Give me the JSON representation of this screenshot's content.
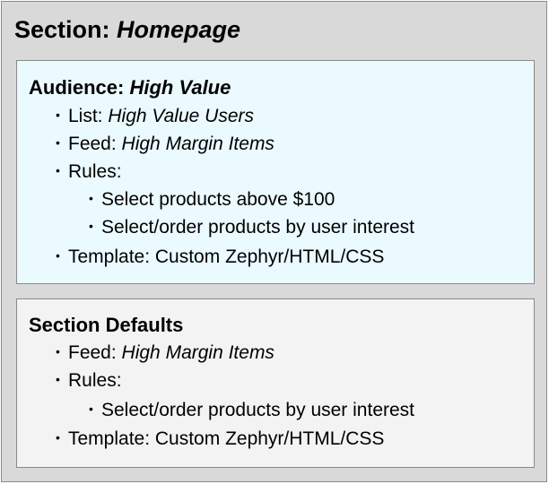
{
  "section": {
    "label": "Section:",
    "name": "Homepage"
  },
  "audience": {
    "label": "Audience:",
    "name": "High Value",
    "list_label": "List:",
    "list_value": "High Value Users",
    "feed_label": "Feed:",
    "feed_value": "High Margin Items",
    "rules_label": "Rules:",
    "rules": [
      "Select products above $100",
      "Select/order products by user interest"
    ],
    "template": "Template: Custom Zephyr/HTML/CSS"
  },
  "defaults": {
    "title": "Section Defaults",
    "feed_label": "Feed:",
    "feed_value": "High Margin Items",
    "rules_label": "Rules:",
    "rules": [
      "Select/order products by user interest"
    ],
    "template": "Template: Custom Zephyr/HTML/CSS"
  },
  "colors": {
    "outer": "#d9d9d9",
    "audience_box": "#ebfaff",
    "defaults_box": "#f3f3f3"
  }
}
